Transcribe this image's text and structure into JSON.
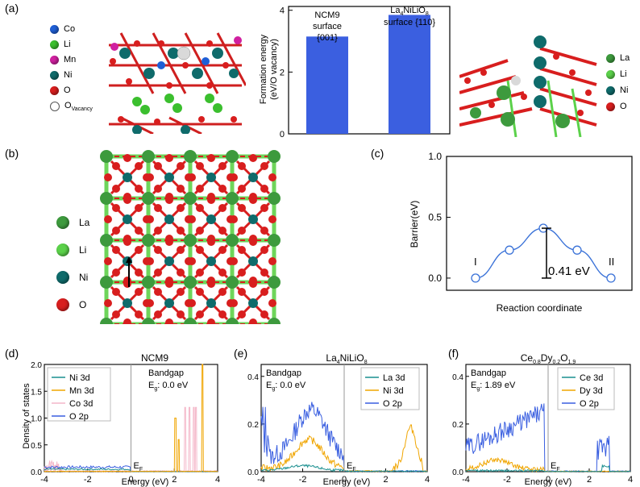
{
  "panel_labels": {
    "a": "(a)",
    "b": "(b)",
    "c": "(c)",
    "d": "(d)",
    "e": "(e)",
    "f": "(f)"
  },
  "legend_a_left": [
    {
      "label": "Co",
      "color": "#1f5fd6"
    },
    {
      "label": "Li",
      "color": "#3bbf2e"
    },
    {
      "label": "Mn",
      "color": "#d020a0"
    },
    {
      "label": "Ni",
      "color": "#0f6b6b"
    },
    {
      "label": "O",
      "color": "#d81e1e"
    },
    {
      "label": "O",
      "sub": "Vacancy",
      "color": "#ffffff"
    }
  ],
  "legend_a_right": [
    {
      "label": "La",
      "color": "#3d9a3d"
    },
    {
      "label": "Li",
      "color": "#5bd14a"
    },
    {
      "label": "Ni",
      "color": "#0f6b6b"
    },
    {
      "label": "O",
      "color": "#d81e1e"
    }
  ],
  "legend_b": [
    {
      "label": "La",
      "color": "#3d9a3d"
    },
    {
      "label": "Li",
      "color": "#5bd14a"
    },
    {
      "label": "Ni",
      "color": "#0f6b6b"
    },
    {
      "label": "O",
      "color": "#d81e1e"
    }
  ],
  "chart_data": [
    {
      "id": "a_bar",
      "type": "bar",
      "ylabel": "Formation energy",
      "ylabel2": "(eV/O vacancy)",
      "ylim": [
        0,
        4
      ],
      "yticks": [
        "0",
        "2",
        "4"
      ],
      "bar_color": "#3b5fe0",
      "categories": [
        {
          "name": "NCM9",
          "line2": "surface",
          "line3": "{001}",
          "value": 3.15
        },
        {
          "name": "La4NiLiO8",
          "line2": "surface {110}",
          "value": 3.85
        }
      ]
    },
    {
      "id": "c_barrier",
      "type": "line",
      "xlabel": "Reaction coordinate",
      "ylabel": "Barrier(eV)",
      "ylim": [
        -0.1,
        1.0
      ],
      "yticks": [
        "0.0",
        "0.5",
        "1.0"
      ],
      "x": [
        0,
        1,
        2,
        3,
        4
      ],
      "y": [
        0.0,
        0.23,
        0.41,
        0.23,
        0.0
      ],
      "start_label": "I",
      "end_label": "II",
      "annotation": "0.41 eV",
      "line_color": "#3a72d8"
    },
    {
      "id": "d_dos",
      "type": "line",
      "title": "NCM9",
      "xlabel": "Energy (eV)",
      "ylabel": "Density of states",
      "xlim": [
        -4,
        4
      ],
      "ylim": [
        0,
        2.0
      ],
      "xticks": [
        "-4",
        "-2",
        "0",
        "2",
        "4"
      ],
      "yticks": [
        "0.0",
        "0.5",
        "1.0",
        "1.5",
        "2.0"
      ],
      "bandgap_label": "Bandgap",
      "eg_label": "E",
      "eg_sub": "g",
      "eg_value": ": 0.0 eV",
      "ef_label": "E",
      "ef_sub": "F",
      "series": [
        {
          "name": "Ni 3d",
          "color": "#1a8f8f"
        },
        {
          "name": "Mn 3d",
          "color": "#f0a500"
        },
        {
          "name": "Co 3d",
          "color": "#f4b6c8"
        },
        {
          "name": "O  2p",
          "color": "#3a5fe0"
        }
      ]
    },
    {
      "id": "e_dos",
      "type": "line",
      "title_parts": [
        "La",
        "4",
        "NiLiO",
        "8"
      ],
      "xlabel": "Energy (eV)",
      "xlim": [
        -4,
        4
      ],
      "ylim": [
        0,
        0.45
      ],
      "xticks": [
        "-4",
        "-2",
        "0",
        "2",
        "4"
      ],
      "yticks": [
        "0.0",
        "0.2",
        "0.4"
      ],
      "bandgap_label": "Bandgap",
      "eg_label": "E",
      "eg_sub": "g",
      "eg_value": ": 0.0 eV",
      "ef_label": "E",
      "ef_sub": "F",
      "series": [
        {
          "name": "La 3d",
          "color": "#1a8f8f"
        },
        {
          "name": "Ni 3d",
          "color": "#f0a500"
        },
        {
          "name": "O  2p",
          "color": "#3a5fe0"
        }
      ]
    },
    {
      "id": "f_dos",
      "type": "line",
      "title_parts": [
        "Ce",
        "0.8",
        "Dy",
        "0.2",
        "O",
        "1.9"
      ],
      "xlabel": "Energy (eV)",
      "xlim": [
        -4,
        4
      ],
      "ylim": [
        0,
        0.45
      ],
      "xticks": [
        "-4",
        "-2",
        "0",
        "2",
        "4"
      ],
      "yticks": [
        "0.0",
        "0.2",
        "0.4"
      ],
      "bandgap_label": "Bandgap",
      "eg_label": "E",
      "eg_sub": "g",
      "eg_value": ": 1.89 eV",
      "ef_label": "E",
      "ef_sub": "F",
      "series": [
        {
          "name": "Ce 3d",
          "color": "#1a8f8f"
        },
        {
          "name": "Dy 3d",
          "color": "#f0a500"
        },
        {
          "name": "O  2p",
          "color": "#3a5fe0"
        }
      ]
    }
  ]
}
